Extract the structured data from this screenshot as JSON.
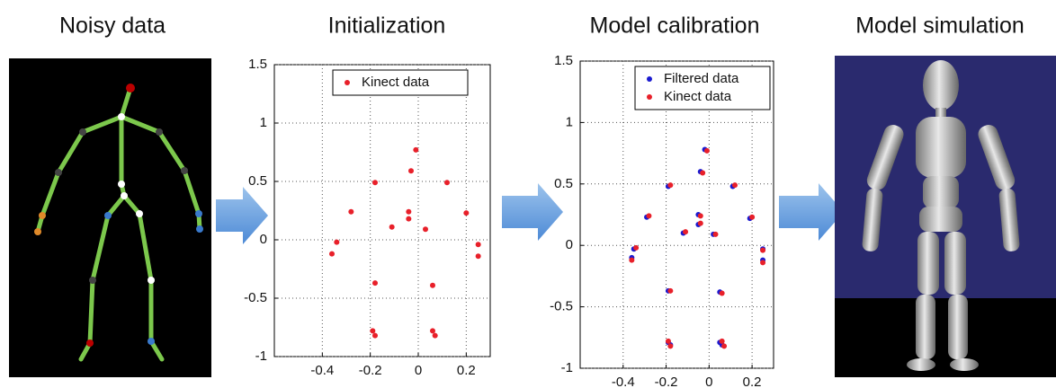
{
  "figure": {
    "panel_titles": [
      "Noisy data",
      "Model simulation"
    ]
  },
  "chart_data": [
    {
      "type": "scatter",
      "title": "Initialization",
      "xlim": [
        -0.6,
        0.3
      ],
      "ylim": [
        -1,
        1.5
      ],
      "xticks": [
        -0.4,
        -0.2,
        0,
        0.2
      ],
      "yticks": [
        -1,
        -0.5,
        0,
        0.5,
        1,
        1.5
      ],
      "grid": true,
      "legend": "top",
      "series": [
        {
          "name": "Kinect data",
          "color": "#e8202a",
          "x": [
            -0.01,
            -0.03,
            -0.18,
            0.12,
            -0.28,
            -0.04,
            -0.04,
            -0.11,
            0.03,
            0.2,
            -0.34,
            -0.36,
            0.25,
            0.25,
            -0.18,
            0.06,
            -0.19,
            -0.18,
            0.06,
            0.07
          ],
          "y": [
            0.77,
            0.59,
            0.49,
            0.49,
            0.24,
            0.24,
            0.18,
            0.11,
            0.09,
            0.23,
            -0.02,
            -0.12,
            -0.04,
            -0.14,
            -0.37,
            -0.39,
            -0.78,
            -0.82,
            -0.78,
            -0.82
          ]
        }
      ]
    },
    {
      "type": "scatter",
      "title": "Model calibration",
      "xlim": [
        -0.6,
        0.3
      ],
      "ylim": [
        -1,
        1.5
      ],
      "xticks": [
        -0.4,
        -0.2,
        0,
        0.2
      ],
      "yticks": [
        -1,
        -0.5,
        0,
        0.5,
        1,
        1.5
      ],
      "grid": true,
      "legend": "top right",
      "series": [
        {
          "name": "Filtered data",
          "color": "#1a1ad0",
          "x": [
            -0.02,
            -0.04,
            -0.19,
            0.11,
            -0.29,
            -0.05,
            -0.05,
            -0.12,
            0.02,
            0.19,
            -0.35,
            -0.36,
            0.25,
            0.25,
            -0.19,
            0.05,
            -0.19,
            -0.18,
            0.05,
            0.06
          ],
          "y": [
            0.78,
            0.6,
            0.48,
            0.48,
            0.23,
            0.25,
            0.17,
            0.1,
            0.09,
            0.22,
            -0.03,
            -0.1,
            -0.03,
            -0.12,
            -0.37,
            -0.38,
            -0.79,
            -0.81,
            -0.79,
            -0.81
          ]
        },
        {
          "name": "Kinect data",
          "color": "#e8202a",
          "x": [
            -0.01,
            -0.03,
            -0.18,
            0.12,
            -0.28,
            -0.04,
            -0.04,
            -0.11,
            0.03,
            0.2,
            -0.34,
            -0.36,
            0.25,
            0.25,
            -0.18,
            0.06,
            -0.19,
            -0.18,
            0.06,
            0.07
          ],
          "y": [
            0.77,
            0.59,
            0.49,
            0.49,
            0.24,
            0.24,
            0.18,
            0.11,
            0.09,
            0.23,
            -0.02,
            -0.12,
            -0.04,
            -0.14,
            -0.37,
            -0.39,
            -0.78,
            -0.82,
            -0.78,
            -0.82
          ]
        }
      ]
    }
  ]
}
